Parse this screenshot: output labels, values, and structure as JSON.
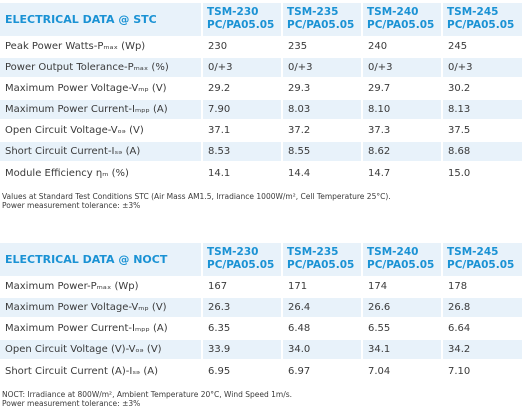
{
  "stc": {
    "title": "ELECTRICAL DATA @ STC",
    "models": [
      "TSM-230\nPC/PA05.05",
      "TSM-235\nPC/PA05.05",
      "TSM-240\nPC/PA05.05",
      "TSM-245\nPC/PA05.05"
    ],
    "rows": [
      {
        "label": "Peak Power Watts-Pₘₐₓ (Wp)",
        "values": [
          "230",
          "235",
          "240",
          "245"
        ]
      },
      {
        "label": "Power Output Tolerance-Pₘₐₓ (%)",
        "values": [
          "0/+3",
          "0/+3",
          "0/+3",
          "0/+3"
        ]
      },
      {
        "label": "Maximum Power Voltage-Vₘₚ (V)",
        "values": [
          "29.2",
          "29.3",
          "29.7",
          "30.2"
        ]
      },
      {
        "label": "Maximum Power Current-Iₘₚₚ (A)",
        "values": [
          "7.90",
          "8.03",
          "8.10",
          "8.13"
        ]
      },
      {
        "label": "Open Circuit Voltage-Vₒₔ (V)",
        "values": [
          "37.1",
          "37.2",
          "37.3",
          "37.5"
        ]
      },
      {
        "label": "Short Circuit Current-Iₛₔ (A)",
        "values": [
          "8.53",
          "8.55",
          "8.62",
          "8.68"
        ]
      },
      {
        "label": "Module Efficiency ηₘ (%)",
        "values": [
          "14.1",
          "14.4",
          "14.7",
          "15.0"
        ]
      }
    ],
    "note_lines": [
      "Values at Standard Test Conditions STC (Air Mass AM1.5, Irradiance 1000W/m², Cell Temperature 25°C).",
      "Power measurement tolerance: ±3%"
    ]
  },
  "noct": {
    "title": "ELECTRICAL DATA @ NOCT",
    "models": [
      "TSM-230\nPC/PA05.05",
      "TSM-235\nPC/PA05.05",
      "TSM-240\nPC/PA05.05",
      "TSM-245\nPC/PA05.05"
    ],
    "rows": [
      {
        "label": "Maximum Power-Pₘₐₓ (Wp)",
        "values": [
          "167",
          "171",
          "174",
          "178"
        ]
      },
      {
        "label": "Maximum Power Voltage-Vₘₚ (V)",
        "values": [
          "26.3",
          "26.4",
          "26.6",
          "26.8"
        ]
      },
      {
        "label": "Maximum Power Current-Iₘₚₚ (A)",
        "values": [
          "6.35",
          "6.48",
          "6.55",
          "6.64"
        ]
      },
      {
        "label": "Open Circuit Voltage (V)-Vₒₔ (V)",
        "values": [
          "33.9",
          "34.0",
          "34.1",
          "34.2"
        ]
      },
      {
        "label": "Short Circuit Current (A)-Iₛₔ (A)",
        "values": [
          "6.95",
          "6.97",
          "7.04",
          "7.10"
        ]
      }
    ],
    "note_lines": [
      "NOCT: Irradiance at 800W/m², Ambient Temperature 20°C, Wind Speed 1m/s.",
      "Power measurement tolerance: ±3%"
    ]
  }
}
